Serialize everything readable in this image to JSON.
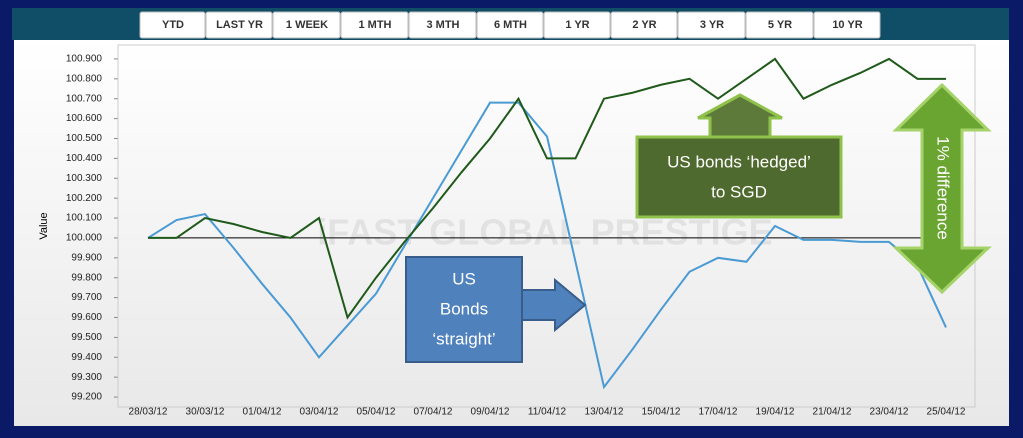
{
  "tabs": [
    "YTD",
    "LAST YR",
    "1 WEEK",
    "1 MTH",
    "3 MTH",
    "6 MTH",
    "1 YR",
    "2 YR",
    "3 YR",
    "5 YR",
    "10 YR"
  ],
  "chart_data": {
    "type": "line",
    "y_label": "Value",
    "watermark": "iFAST GLOBAL PRESTIGE",
    "categories": [
      "28/03/12",
      null,
      "30/03/12",
      null,
      "01/04/12",
      null,
      "03/04/12",
      null,
      "05/04/12",
      null,
      "07/04/12",
      null,
      "09/04/12",
      null,
      "11/04/12",
      null,
      "13/04/12",
      null,
      "15/04/12",
      null,
      "17/04/12",
      null,
      "19/04/12",
      null,
      "21/04/12",
      null,
      "23/04/12",
      null,
      "25/04/12"
    ],
    "series": [
      {
        "color": "#4a9ad4",
        "values": [
          100.0,
          100.09,
          100.12,
          99.95,
          99.77,
          99.6,
          99.4,
          99.56,
          99.72,
          99.96,
          100.2,
          100.44,
          100.68,
          100.68,
          100.51,
          99.88,
          99.25,
          99.44,
          99.64,
          99.83,
          99.9,
          99.88,
          100.06,
          99.99,
          99.99,
          99.98,
          99.98,
          99.86,
          99.55
        ]
      },
      {
        "color": "#1f5a1a",
        "values": [
          100.0,
          100.0,
          100.1,
          100.07,
          100.03,
          100.0,
          100.1,
          99.6,
          99.8,
          99.98,
          100.15,
          100.33,
          100.5,
          100.7,
          100.4,
          100.4,
          100.7,
          100.73,
          100.77,
          100.8,
          100.7,
          100.8,
          100.9,
          100.7,
          100.77,
          100.83,
          100.9,
          100.8,
          100.8
        ]
      }
    ],
    "reference_line": 100,
    "ylim": [
      99.15,
      100.97
    ],
    "yticks": [
      {
        "value": 99.2,
        "label": "99.200"
      },
      {
        "value": 99.3,
        "label": "99.300"
      },
      {
        "value": 99.4,
        "label": "99.400"
      },
      {
        "value": 99.5,
        "label": "99.500"
      },
      {
        "value": 99.6,
        "label": "99.600"
      },
      {
        "value": 99.7,
        "label": "99.700"
      },
      {
        "value": 99.8,
        "label": "99.800"
      },
      {
        "value": 99.9,
        "label": "99.900"
      },
      {
        "value": 100,
        "label": "100.000"
      },
      {
        "value": 100.1,
        "label": "100.100"
      },
      {
        "value": 100.2,
        "label": "100.200"
      },
      {
        "value": 100.3,
        "label": "100.300"
      },
      {
        "value": 100.4,
        "label": "100.400"
      },
      {
        "value": 100.5,
        "label": "100.500"
      },
      {
        "value": 100.6,
        "label": "100.600"
      },
      {
        "value": 100.7,
        "label": "100.700"
      },
      {
        "value": 100.8,
        "label": "100.800"
      },
      {
        "value": 100.9,
        "label": "100.900"
      }
    ],
    "annotations": [
      {
        "lines": [
          "US bonds ‘hedged’",
          "to SGD"
        ]
      },
      {
        "lines": [
          "US",
          "Bonds",
          "‘straight’"
        ]
      },
      {
        "lines": [
          "1% difference"
        ]
      }
    ]
  }
}
